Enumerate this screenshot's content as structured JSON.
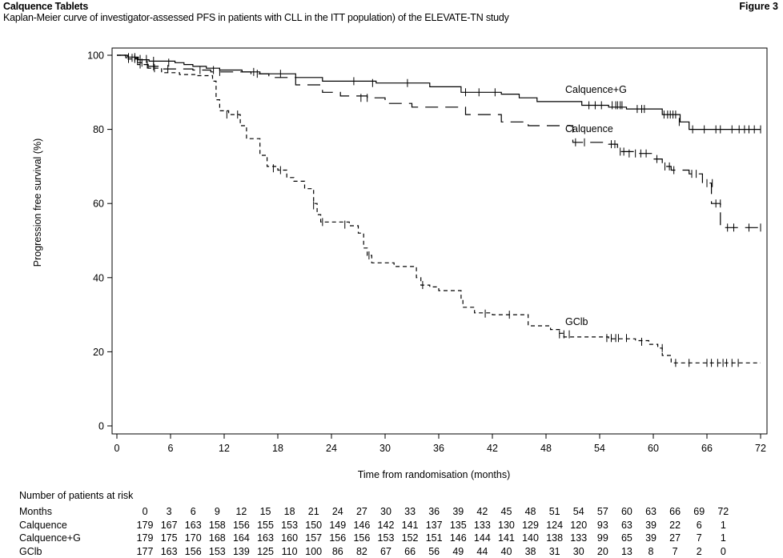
{
  "header": {
    "title": "Calquence Tablets",
    "figure": "Figure 3",
    "subtitle": "Kaplan-Meier curve of investigator-assessed PFS in patients with CLL in the ITT population) of the ELEVATE-TN study"
  },
  "chart_data": {
    "type": "line",
    "subtype": "kaplan-meier",
    "xlabel": "Time from randomisation (months)",
    "ylabel": "Progression free survival (%)",
    "xlim": [
      0,
      72
    ],
    "ylim": [
      0,
      100
    ],
    "xticks": [
      0,
      6,
      12,
      18,
      24,
      30,
      36,
      42,
      48,
      54,
      60,
      66,
      72
    ],
    "yticks": [
      0,
      20,
      40,
      60,
      80,
      100
    ],
    "grid": false,
    "series": [
      {
        "name": "Calquence+G",
        "label": "Calquence+G",
        "dash": "solid",
        "steps": [
          [
            0,
            100
          ],
          [
            1.2,
            99.5
          ],
          [
            2.4,
            98.8
          ],
          [
            3.6,
            98.4
          ],
          [
            6.5,
            98
          ],
          [
            7.5,
            97.5
          ],
          [
            8.5,
            97
          ],
          [
            10,
            96.5
          ],
          [
            11.5,
            96
          ],
          [
            14,
            95.5
          ],
          [
            16,
            95
          ],
          [
            20,
            94
          ],
          [
            23,
            93
          ],
          [
            29,
            92.5
          ],
          [
            35,
            91.5
          ],
          [
            38.5,
            90
          ],
          [
            43,
            89.5
          ],
          [
            45,
            88.5
          ],
          [
            47,
            87.5
          ],
          [
            52,
            86.5
          ],
          [
            55,
            86
          ],
          [
            57,
            85.5
          ],
          [
            61,
            84
          ],
          [
            63,
            82
          ],
          [
            64,
            80
          ],
          [
            72,
            80
          ]
        ],
        "censors": [
          [
            1.3,
            99.5
          ],
          [
            2,
            99.5
          ],
          [
            2.6,
            99
          ],
          [
            3.3,
            99
          ],
          [
            4.1,
            98.5
          ],
          [
            5.8,
            98
          ],
          [
            10.8,
            96
          ],
          [
            15.3,
            95.5
          ],
          [
            18.3,
            95
          ],
          [
            26.5,
            93
          ],
          [
            28.6,
            92.5
          ],
          [
            32.5,
            92.5
          ],
          [
            39,
            90
          ],
          [
            40.5,
            90
          ],
          [
            42.3,
            90
          ],
          [
            52.8,
            86.5
          ],
          [
            53.5,
            86.5
          ],
          [
            54.2,
            86.5
          ],
          [
            55.4,
            86.5
          ],
          [
            55.8,
            86.5
          ],
          [
            56,
            86.5
          ],
          [
            56.3,
            86.5
          ],
          [
            56.5,
            86.5
          ],
          [
            58.2,
            85.5
          ],
          [
            58.7,
            85.5
          ],
          [
            59,
            85.5
          ],
          [
            61.2,
            84
          ],
          [
            61.6,
            84
          ],
          [
            61.9,
            84
          ],
          [
            62.2,
            84
          ],
          [
            62.5,
            84
          ],
          [
            62.9,
            82
          ],
          [
            64.4,
            80
          ],
          [
            65.7,
            80
          ],
          [
            67,
            80
          ],
          [
            67.5,
            80
          ],
          [
            68.8,
            80
          ],
          [
            69.6,
            80
          ],
          [
            70.2,
            80
          ],
          [
            70.7,
            80
          ],
          [
            71.3,
            80
          ],
          [
            72,
            80
          ]
        ]
      },
      {
        "name": "Calquence",
        "label": "Calquence",
        "dash": "long-dash",
        "steps": [
          [
            0,
            100
          ],
          [
            1,
            99.3
          ],
          [
            2.3,
            98
          ],
          [
            3.5,
            97
          ],
          [
            5,
            96.3
          ],
          [
            8.5,
            96
          ],
          [
            10.5,
            95.5
          ],
          [
            15,
            95
          ],
          [
            17,
            94
          ],
          [
            20,
            92
          ],
          [
            23,
            90
          ],
          [
            25,
            89
          ],
          [
            28,
            88.5
          ],
          [
            30,
            87
          ],
          [
            33,
            86
          ],
          [
            39,
            84
          ],
          [
            43,
            82
          ],
          [
            46,
            81
          ],
          [
            51,
            76.5
          ],
          [
            55,
            76
          ],
          [
            56,
            74
          ],
          [
            58,
            73.5
          ],
          [
            60,
            72
          ],
          [
            61,
            70
          ],
          [
            62,
            69
          ],
          [
            64,
            68
          ],
          [
            65.5,
            65.5
          ],
          [
            66.5,
            60
          ],
          [
            67.5,
            53.5
          ],
          [
            72,
            53.5
          ]
        ],
        "censors": [
          [
            1.7,
            99.3
          ],
          [
            2.8,
            98
          ],
          [
            4.1,
            97
          ],
          [
            5.7,
            96.3
          ],
          [
            9.3,
            96
          ],
          [
            11.5,
            95.5
          ],
          [
            15.7,
            95
          ],
          [
            27.3,
            88.5
          ],
          [
            28,
            88.5
          ],
          [
            51.3,
            76.5
          ],
          [
            52.3,
            76.5
          ],
          [
            55.3,
            76
          ],
          [
            55.7,
            76
          ],
          [
            56.3,
            74
          ],
          [
            56.7,
            74
          ],
          [
            57.3,
            73.5
          ],
          [
            58,
            73.5
          ],
          [
            58.6,
            73.5
          ],
          [
            59.2,
            73.5
          ],
          [
            60.4,
            72
          ],
          [
            61.3,
            70
          ],
          [
            61.8,
            70
          ],
          [
            62.3,
            69
          ],
          [
            64.3,
            68
          ],
          [
            64.8,
            68
          ],
          [
            66,
            65.5
          ],
          [
            66.6,
            65.5
          ],
          [
            67,
            60
          ],
          [
            67.5,
            60
          ],
          [
            68.3,
            53.5
          ],
          [
            69,
            53.5
          ],
          [
            70.7,
            53.5
          ],
          [
            72,
            53.5
          ]
        ]
      },
      {
        "name": "GClb",
        "label": "GClb",
        "dash": "short-dash",
        "steps": [
          [
            0,
            100
          ],
          [
            1,
            99
          ],
          [
            2.3,
            97.5
          ],
          [
            3.5,
            96.5
          ],
          [
            5,
            95.3
          ],
          [
            7,
            94.8
          ],
          [
            9,
            94.5
          ],
          [
            10.7,
            93
          ],
          [
            11.1,
            88
          ],
          [
            11.5,
            85
          ],
          [
            12.5,
            84
          ],
          [
            13.8,
            81
          ],
          [
            14.5,
            77.5
          ],
          [
            16,
            73
          ],
          [
            16.8,
            70
          ],
          [
            18,
            69
          ],
          [
            19,
            67
          ],
          [
            19.8,
            66
          ],
          [
            21,
            64
          ],
          [
            22,
            60
          ],
          [
            22.4,
            57
          ],
          [
            22.8,
            55
          ],
          [
            26,
            54
          ],
          [
            27,
            52
          ],
          [
            27.6,
            48
          ],
          [
            28,
            46
          ],
          [
            28.5,
            44
          ],
          [
            31,
            43
          ],
          [
            33.5,
            40
          ],
          [
            34,
            38
          ],
          [
            35,
            37.5
          ],
          [
            36,
            36.5
          ],
          [
            38.5,
            34
          ],
          [
            38.7,
            32
          ],
          [
            40,
            30.5
          ],
          [
            42,
            30
          ],
          [
            46,
            27
          ],
          [
            48.5,
            26
          ],
          [
            49.5,
            25
          ],
          [
            50,
            24
          ],
          [
            52,
            24
          ],
          [
            55,
            23.5
          ],
          [
            56.5,
            23.5
          ],
          [
            58,
            23
          ],
          [
            59.5,
            22
          ],
          [
            60.5,
            21
          ],
          [
            61,
            19
          ],
          [
            62,
            17
          ],
          [
            72,
            17
          ]
        ],
        "censors": [
          [
            1.3,
            99
          ],
          [
            2,
            99
          ],
          [
            2.6,
            97.5
          ],
          [
            3.4,
            97.5
          ],
          [
            4.2,
            96.5
          ],
          [
            12.3,
            84
          ],
          [
            13.5,
            84
          ],
          [
            17.5,
            69.5
          ],
          [
            18.3,
            69
          ],
          [
            22,
            59.5
          ],
          [
            23,
            55
          ],
          [
            25.5,
            54.3
          ],
          [
            28.2,
            46
          ],
          [
            34.2,
            38
          ],
          [
            41.2,
            30.3
          ],
          [
            43.9,
            30
          ],
          [
            49.5,
            24.7
          ],
          [
            50,
            24.7
          ],
          [
            50.6,
            24.7
          ],
          [
            54.8,
            23.7
          ],
          [
            55.3,
            23.7
          ],
          [
            55.8,
            23.7
          ],
          [
            56.1,
            23.7
          ],
          [
            57,
            23.7
          ],
          [
            58.7,
            22.7
          ],
          [
            61,
            21
          ],
          [
            62.5,
            17
          ],
          [
            64,
            17
          ],
          [
            66,
            17
          ],
          [
            66.5,
            17
          ],
          [
            67.2,
            17
          ],
          [
            67.8,
            17
          ],
          [
            68.2,
            17
          ],
          [
            68.8,
            17
          ],
          [
            69.5,
            17
          ]
        ]
      }
    ],
    "risk_table": {
      "title": "Number of patients at risk",
      "rows": [
        {
          "label": "Months",
          "values": [
            "0",
            "3",
            "6",
            "9",
            "12",
            "15",
            "18",
            "21",
            "24",
            "27",
            "30",
            "33",
            "36",
            "39",
            "42",
            "45",
            "48",
            "51",
            "54",
            "57",
            "60",
            "63",
            "66",
            "69",
            "72"
          ]
        },
        {
          "label": "Calquence",
          "values": [
            "179",
            "167",
            "163",
            "158",
            "156",
            "155",
            "153",
            "150",
            "149",
            "146",
            "142",
            "141",
            "137",
            "135",
            "133",
            "130",
            "129",
            "124",
            "120",
            "93",
            "63",
            "39",
            "22",
            "6",
            "1"
          ]
        },
        {
          "label": "Calquence+G",
          "values": [
            "179",
            "175",
            "170",
            "168",
            "164",
            "163",
            "160",
            "157",
            "156",
            "156",
            "153",
            "152",
            "151",
            "146",
            "144",
            "141",
            "140",
            "138",
            "133",
            "99",
            "65",
            "39",
            "27",
            "7",
            "1"
          ]
        },
        {
          "label": "GClb",
          "values": [
            "177",
            "163",
            "156",
            "153",
            "139",
            "125",
            "110",
            "100",
            "86",
            "82",
            "67",
            "66",
            "56",
            "49",
            "44",
            "40",
            "38",
            "31",
            "30",
            "20",
            "13",
            "8",
            "7",
            "2",
            "0"
          ]
        }
      ]
    }
  }
}
